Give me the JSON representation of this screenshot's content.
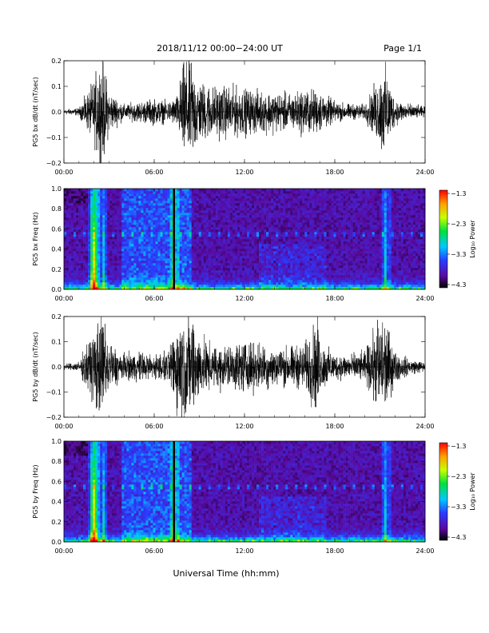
{
  "header": {
    "title": "2018/11/12  00:00−24:00 UT",
    "page": "Page 1/1"
  },
  "footer": {
    "xlabel": "Universal Time (hh:mm)"
  },
  "chart_data": [
    {
      "type": "line",
      "ylabel": "PG5 bx dB/dt (nT/sec)",
      "xlim": [
        0,
        24
      ],
      "ylim": [
        -0.2,
        0.2
      ],
      "yticks": [
        "0.2",
        "0.1",
        "0.0",
        "−0.1",
        "−0.2"
      ],
      "xticks": [
        "00:00",
        "06:00",
        "12:00",
        "18:00",
        "24:00"
      ],
      "series": [
        {
          "x": [
            0,
            1,
            2,
            2.3,
            2.6,
            3,
            4,
            5,
            6,
            7,
            7.5,
            8,
            8.3,
            8.6,
            9,
            10,
            11,
            12,
            13,
            14,
            15,
            16,
            17,
            18,
            19,
            20,
            21,
            21.3,
            22,
            23,
            24
          ],
          "y": [
            0.01,
            0.015,
            0.12,
            0.2,
            -0.2,
            0.08,
            0.03,
            0.04,
            0.05,
            0.04,
            0.06,
            0.2,
            -0.2,
            0.18,
            0.12,
            0.1,
            0.1,
            0.09,
            0.08,
            0.08,
            0.07,
            0.09,
            0.08,
            0.04,
            0.03,
            0.03,
            0.14,
            0.18,
            0.05,
            0.03,
            0.02
          ]
        }
      ]
    },
    {
      "type": "heatmap",
      "ylabel": "PG5 bx Freq (Hz)",
      "xlim": [
        0,
        24
      ],
      "ylim": [
        0,
        1
      ],
      "yticks": [
        "1.0",
        "0.8",
        "0.6",
        "0.4",
        "0.2",
        "0.0"
      ],
      "xticks": [
        "00:00",
        "06:00",
        "12:00",
        "18:00",
        "24:00"
      ],
      "colorbar": {
        "label": "Log₁₀ Power",
        "ticks": [
          "−1.3",
          "−2.3",
          "−3.3",
          "−4.3"
        ],
        "range": [
          -4.3,
          -1.3
        ]
      },
      "features": {
        "spike_hours": [
          1.9,
          2.1,
          2.6,
          7.3,
          21.4
        ],
        "broadband_start_h": 3.8,
        "broadband_end_h": 8.5,
        "line_freq_hz": 0.55
      }
    },
    {
      "type": "line",
      "ylabel": "PG5 by dB/dt (nT/sec)",
      "xlim": [
        0,
        24
      ],
      "ylim": [
        -0.2,
        0.2
      ],
      "yticks": [
        "0.2",
        "0.1",
        "0.0",
        "−0.1",
        "−0.2"
      ],
      "xticks": [
        "00:00",
        "06:00",
        "12:00",
        "18:00",
        "24:00"
      ],
      "series": [
        {
          "x": [
            0,
            1,
            2,
            2.3,
            2.6,
            3,
            4,
            5,
            6,
            7,
            7.5,
            8,
            8.3,
            8.6,
            9,
            10,
            11,
            12,
            13,
            14,
            15,
            16,
            16.9,
            17,
            18,
            19,
            20,
            21,
            21.3,
            22,
            23,
            24
          ],
          "y": [
            0.01,
            0.02,
            0.15,
            0.2,
            -0.2,
            0.1,
            0.05,
            0.06,
            0.05,
            0.06,
            0.2,
            0.2,
            -0.2,
            -0.2,
            0.12,
            0.08,
            0.09,
            0.1,
            0.09,
            0.08,
            0.08,
            0.09,
            -0.2,
            0.1,
            0.05,
            0.05,
            0.06,
            0.2,
            -0.2,
            0.06,
            0.03,
            0.02
          ]
        }
      ]
    },
    {
      "type": "heatmap",
      "ylabel": "PG5 by Freq (Hz)",
      "xlim": [
        0,
        24
      ],
      "ylim": [
        0,
        1
      ],
      "yticks": [
        "1.0",
        "0.8",
        "0.6",
        "0.4",
        "0.2",
        "0.0"
      ],
      "xticks": [
        "00:00",
        "06:00",
        "12:00",
        "18:00",
        "24:00"
      ],
      "colorbar": {
        "label": "Log₁₀ Power",
        "ticks": [
          "−1.3",
          "−2.3",
          "−3.3",
          "−4.3"
        ],
        "range": [
          -4.3,
          -1.3
        ]
      },
      "features": {
        "spike_hours": [
          1.9,
          2.1,
          2.6,
          7.3,
          21.4
        ],
        "broadband_start_h": 3.8,
        "broadband_end_h": 8.5,
        "line_freq_hz": 0.55
      }
    }
  ]
}
